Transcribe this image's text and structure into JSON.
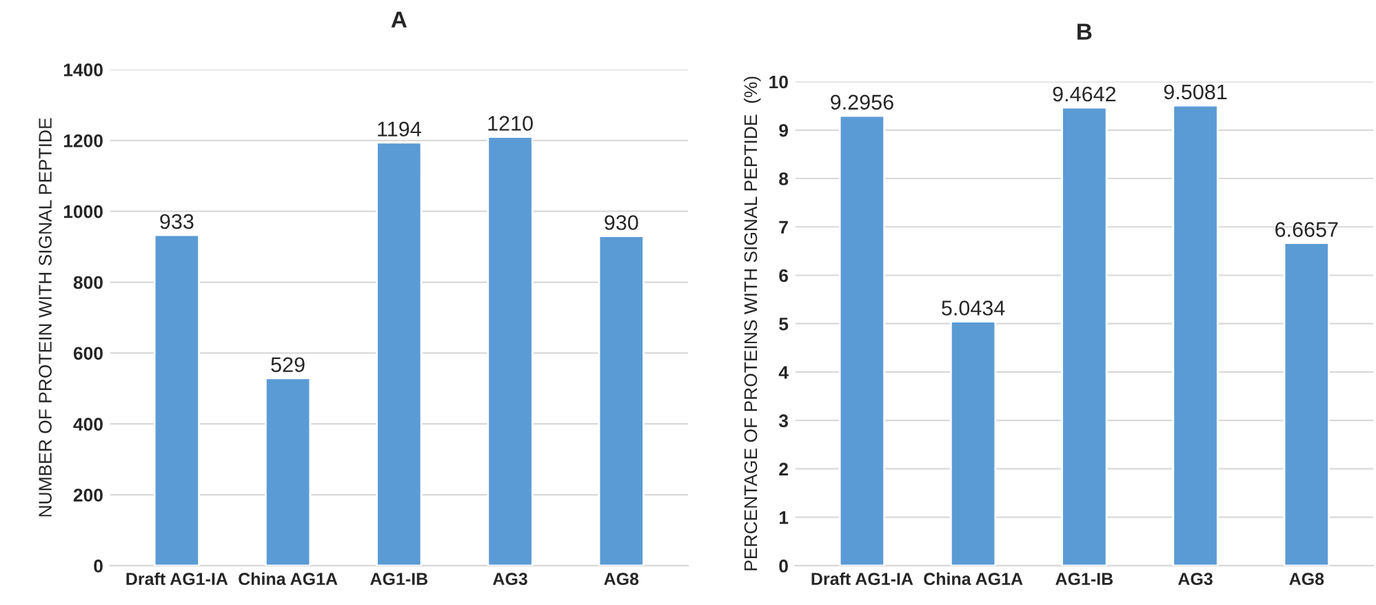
{
  "chart_data": [
    {
      "type": "bar",
      "title": "A",
      "ylabel": "NUMBER OF PROTEIN WITH SIGNAL PEPTIDE",
      "categories": [
        "Draft AG1-IA",
        "China AG1A",
        "AG1-IB",
        "AG3",
        "AG8"
      ],
      "series": [
        {
          "color": "#5b9bd5",
          "values": [
            933,
            529,
            1194,
            1210,
            930
          ]
        }
      ],
      "ylim": [
        0,
        1400
      ],
      "yticks": [
        0,
        200,
        400,
        600,
        800,
        1000,
        1200,
        1400
      ],
      "grid": "y",
      "data_labels": true
    },
    {
      "type": "bar",
      "title": "B",
      "ylabel": "PERCENTAGE OF PROTEINS WITH SIGNAL PEPTIDE  (%)",
      "categories": [
        "Draft AG1-IA",
        "China AG1A",
        "AG1-IB",
        "AG3",
        "AG8"
      ],
      "series": [
        {
          "color": "#5b9bd5",
          "values": [
            9.2956,
            5.0434,
            9.4642,
            9.5081,
            6.6657
          ]
        }
      ],
      "ylim": [
        0,
        10
      ],
      "yticks": [
        0,
        1,
        2,
        3,
        4,
        5,
        6,
        7,
        8,
        9,
        10
      ],
      "grid": "y",
      "data_labels": true
    }
  ]
}
